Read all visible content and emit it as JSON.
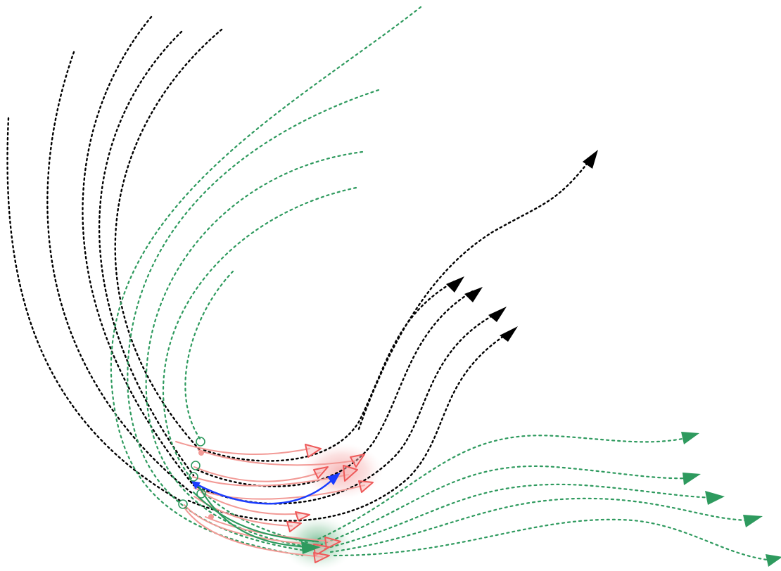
{
  "colors": {
    "black_track": "#000000",
    "green_track": "#2e9a5e",
    "pink_prediction": "#f29a96",
    "red_marker": "#ee5a5a",
    "blue_selected": "#1a3cff",
    "red_region": "#f5b5b5",
    "green_region": "#9fd1ae"
  },
  "legend": []
}
